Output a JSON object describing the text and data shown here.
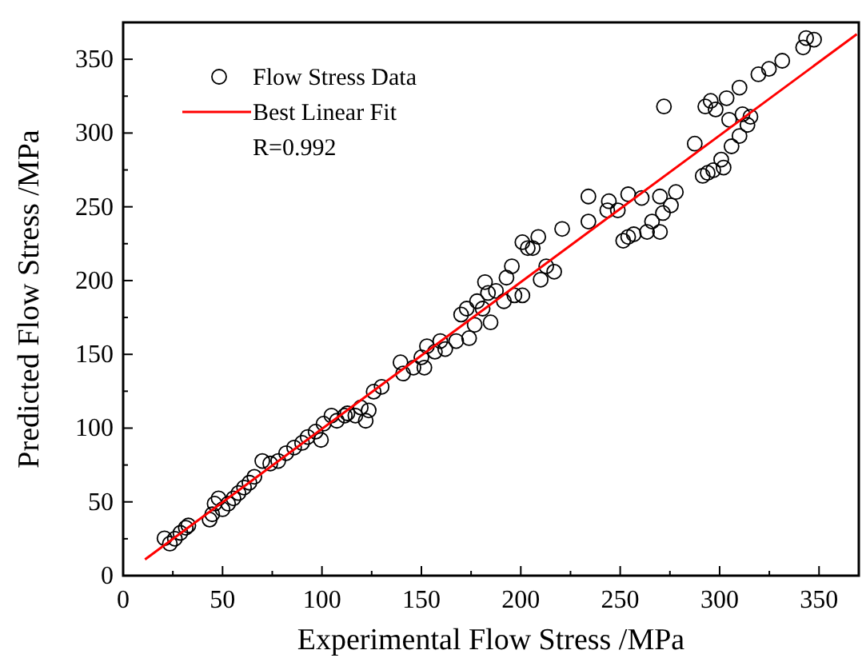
{
  "chart_data": {
    "type": "scatter",
    "xlabel": "Experimental Flow Stress /MPa",
    "ylabel": "Predicted Flow Stress /MPa",
    "xlim": [
      0,
      370
    ],
    "ylim": [
      0,
      375
    ],
    "xticks": [
      0,
      {
        "value": 25,
        "label": null
      },
      50,
      {
        "value": 75,
        "label": null
      },
      100,
      {
        "value": 125,
        "label": null
      },
      150,
      {
        "value": 175,
        "label": null
      },
      200,
      {
        "value": 225,
        "label": null
      },
      250,
      {
        "value": 275,
        "label": null
      },
      300,
      {
        "value": 325,
        "label": null
      },
      350
    ],
    "yticks": [
      0,
      {
        "value": 25,
        "label": null
      },
      50,
      {
        "value": 75,
        "label": null
      },
      100,
      {
        "value": 125,
        "label": null
      },
      150,
      {
        "value": 175,
        "label": null
      },
      200,
      {
        "value": 225,
        "label": null
      },
      250,
      {
        "value": 275,
        "label": null
      },
      300,
      {
        "value": 325,
        "label": null
      },
      350
    ],
    "grid": false,
    "legend": "top left",
    "annotations": [
      "R=0.992"
    ],
    "series": [
      {
        "name": "Flow Stress Data",
        "marker": "circle",
        "color": "#000000",
        "x": [
          20.8,
          23.5,
          26,
          28.8,
          31.5,
          32.8,
          43.5,
          44.8,
          46,
          48,
          50,
          52.8,
          55.5,
          58,
          60.8,
          63.5,
          66,
          70,
          74,
          78,
          82,
          86,
          90,
          92.8,
          96.8,
          99.5,
          100.8,
          104.8,
          107.5,
          111.5,
          112.8,
          116.8,
          119.5,
          122,
          123.5,
          126,
          130,
          139.5,
          140.8,
          146,
          150,
          151.5,
          152.8,
          156.8,
          159.5,
          162,
          167.5,
          170,
          172.8,
          174,
          176.8,
          178,
          180.8,
          182,
          183.5,
          184.8,
          187.5,
          191.5,
          192.8,
          195.5,
          196.8,
          200.8,
          200.8,
          203.5,
          206,
          208.8,
          210,
          212.8,
          216.8,
          220.8,
          234,
          234,
          243.5,
          244.3,
          248.8,
          251.5,
          254,
          254,
          256.8,
          260.8,
          263.5,
          266,
          270,
          270,
          271.5,
          272,
          275.5,
          278,
          287.5,
          291.5,
          292.8,
          294,
          295.5,
          296.8,
          298,
          300.8,
          302,
          303.5,
          304.8,
          306,
          310,
          310,
          311.5,
          314,
          315.5,
          319.5,
          324.8,
          331.5,
          342,
          343.5,
          347.5
        ],
        "values": [
          25.3,
          21.7,
          25,
          29,
          32.5,
          34,
          38,
          41.6,
          48.8,
          52.4,
          45,
          48.8,
          52.4,
          56,
          59.7,
          63,
          67,
          77.7,
          76,
          77.7,
          83,
          86.8,
          90,
          94,
          97.6,
          92,
          103,
          108.5,
          105,
          108.5,
          110,
          108.5,
          114,
          105,
          112,
          124.7,
          128,
          144.6,
          137,
          141,
          148,
          141,
          155.5,
          151.8,
          159,
          153.6,
          159,
          177,
          181,
          161,
          170,
          186,
          181,
          199,
          191.6,
          171.7,
          193,
          186,
          202,
          209.7,
          190,
          190,
          226,
          222,
          222,
          229.6,
          200.6,
          209.7,
          206,
          235,
          240,
          257,
          247.6,
          253.8,
          247.6,
          227,
          229.6,
          258.5,
          231.4,
          256,
          233,
          240,
          257,
          233,
          245.8,
          318,
          251,
          260,
          292.8,
          271,
          318,
          273,
          321.8,
          274.8,
          316,
          282,
          276.6,
          323.6,
          309,
          291,
          298,
          330.8,
          312.7,
          305.5,
          311,
          339.8,
          343.5,
          349,
          358,
          364.4,
          363.3
        ]
      },
      {
        "name": "Best Linear Fit",
        "type": "line",
        "marker": "none",
        "line_style": "solid",
        "color": "#ff0000",
        "x": [
          11,
          369
        ],
        "values": [
          11,
          367
        ]
      }
    ]
  }
}
